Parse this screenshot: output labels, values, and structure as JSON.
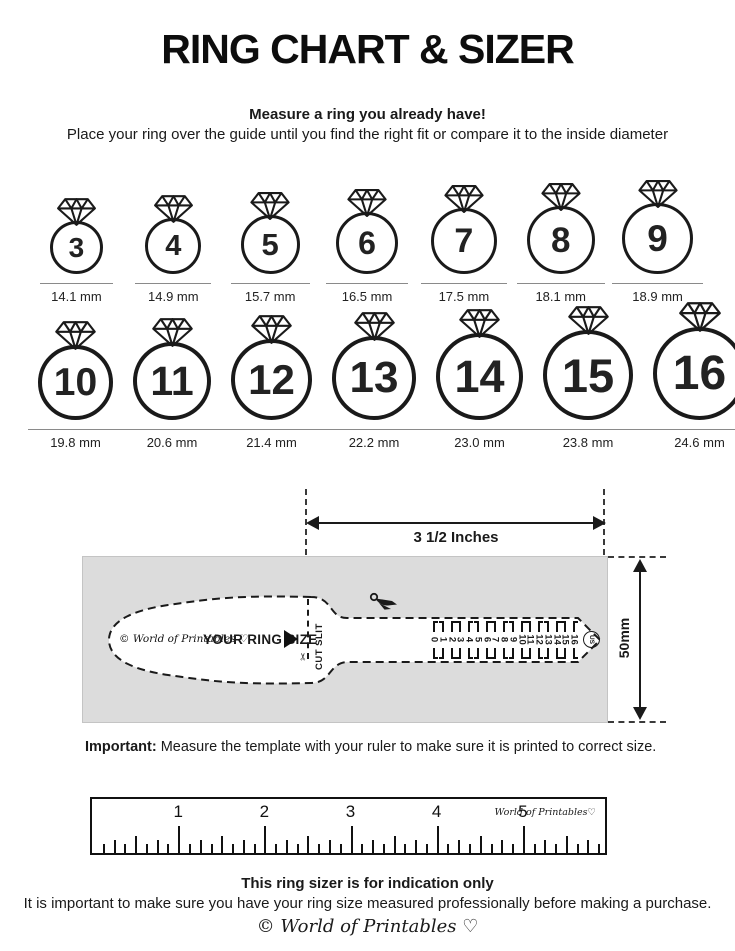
{
  "page": {
    "title": "RING CHART & SIZER",
    "intro_bold": "Measure a ring you already have!",
    "intro_text": "Place your ring over the guide until you find the right fit or compare it to the inside diameter"
  },
  "ring_chart": {
    "rows": [
      [
        {
          "size": "3",
          "label": "14.1 mm",
          "mm": 14.1
        },
        {
          "size": "4",
          "label": "14.9 mm",
          "mm": 14.9
        },
        {
          "size": "5",
          "label": "15.7 mm",
          "mm": 15.7
        },
        {
          "size": "6",
          "label": "16.5 mm",
          "mm": 16.5
        },
        {
          "size": "7",
          "label": "17.5 mm",
          "mm": 17.5
        },
        {
          "size": "8",
          "label": "18.1 mm",
          "mm": 18.1
        },
        {
          "size": "9",
          "label": "18.9 mm",
          "mm": 18.9
        }
      ],
      [
        {
          "size": "10",
          "label": "19.8 mm",
          "mm": 19.8
        },
        {
          "size": "11",
          "label": "20.6 mm",
          "mm": 20.6
        },
        {
          "size": "12",
          "label": "21.4 mm",
          "mm": 21.4
        },
        {
          "size": "13",
          "label": "22.2 mm",
          "mm": 22.2
        },
        {
          "size": "14",
          "label": "23.0 mm",
          "mm": 23.0
        },
        {
          "size": "15",
          "label": "23.8 mm",
          "mm": 23.8
        },
        {
          "size": "16",
          "label": "24.6 mm",
          "mm": 24.6
        }
      ]
    ]
  },
  "sizer": {
    "width_label": "3 1/2 Inches",
    "height_label": "50mm",
    "brand": "© World of Printables ♡",
    "your_ring_size": "YOUR RING SIZE",
    "cut_slit": "CUT SLIT",
    "us_label": "US",
    "scale_numbers": [
      "0",
      "1",
      "2",
      "3",
      "4",
      "5",
      "6",
      "7",
      "8",
      "9",
      "10",
      "11",
      "12",
      "13",
      "14",
      "15",
      "16"
    ]
  },
  "important": {
    "bold": "Important:",
    "text": " Measure the template with your ruler to make sure it is printed to correct size."
  },
  "ruler": {
    "inch_labels": [
      "1",
      "2",
      "3",
      "4",
      "5"
    ],
    "brand": "World of Printables♡"
  },
  "footer": {
    "bold": "This ring sizer is for indication only",
    "text": "It is important to make sure you have your ring size measured professionally before making a purchase.",
    "brand": "© World of Printables ♡"
  }
}
